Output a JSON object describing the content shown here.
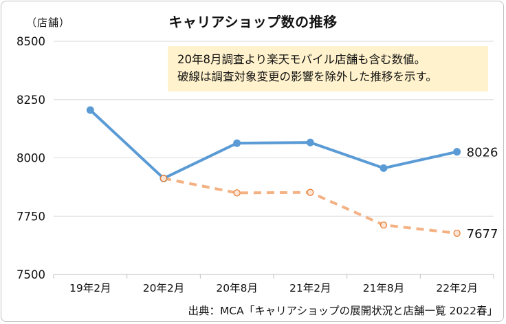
{
  "chart_data": {
    "type": "line",
    "title": "キャリアショップ数の推移",
    "unit_label": "（店舗）",
    "categories": [
      "19年2月",
      "20年2月",
      "20年8月",
      "21年2月",
      "21年8月",
      "22年2月"
    ],
    "ylim": [
      7500,
      8500
    ],
    "yticks": [
      7500,
      7750,
      8000,
      8250,
      8500
    ],
    "grid": true,
    "series": [
      {
        "values": [
          8205,
          7912,
          8063,
          8066,
          7956,
          8026
        ],
        "color": "#5b9bd5",
        "style": "solid",
        "markers": "filled",
        "end_label": "8026"
      },
      {
        "values": [
          null,
          7912,
          7850,
          7852,
          7712,
          7677
        ],
        "color": "#f4b183",
        "style": "dashed",
        "markers": "hollow",
        "end_label": "7677"
      }
    ],
    "annotation": {
      "lines": [
        "20年8月調査より楽天モバイル店舗も含む数値。",
        "破線は調査対象変更の影響を除外した推移を示す。"
      ],
      "background": "#fff2cc"
    },
    "source": "出典：MCA「キャリアショップの展開状況と店舗一覧 2022春」"
  }
}
